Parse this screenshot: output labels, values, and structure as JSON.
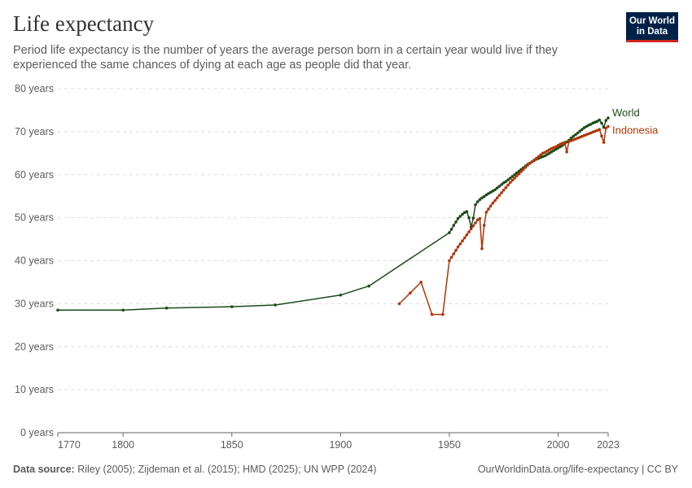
{
  "header": {
    "title": "Life expectancy",
    "subtitle": "Period life expectancy is the number of years the average person born in a certain year would live if they experienced the same chances of dying at each age as people did that year.",
    "logo_line1": "Our World",
    "logo_line2": "in Data"
  },
  "footer": {
    "source_label": "Data source:",
    "source_text": " Riley (2005); Zijdeman et al. (2015); HMD (2025); UN WPP (2024)",
    "url": "OurWorldinData.org/life-expectancy | CC BY"
  },
  "colors": {
    "world": "#1e4a1a",
    "indonesia": "#b13507",
    "grid": "#dddddd",
    "axis": "#666666"
  },
  "chart_data": {
    "type": "line",
    "title": "Life expectancy",
    "xlim": [
      1770,
      2023
    ],
    "ylim": [
      0,
      80
    ],
    "x_ticks": [
      1770,
      1800,
      1850,
      1900,
      1950,
      2000,
      2023
    ],
    "x_tick_labels": [
      "1770",
      "1800",
      "1850",
      "1900",
      "1950",
      "2000",
      "2023"
    ],
    "y_ticks": [
      0,
      10,
      20,
      30,
      40,
      50,
      60,
      70,
      80
    ],
    "y_tick_labels": [
      "0 years",
      "10 years",
      "20 years",
      "30 years",
      "40 years",
      "50 years",
      "60 years",
      "70 years",
      "80 years"
    ],
    "grid": "horizontal dashed",
    "legend": "inline labels at right end of lines",
    "series": [
      {
        "name": "World",
        "color": "#1e4a1a",
        "points": [
          [
            1770,
            28.5
          ],
          [
            1800,
            28.5
          ],
          [
            1820,
            29.0
          ],
          [
            1850,
            29.3
          ],
          [
            1870,
            29.7
          ],
          [
            1900,
            32.0
          ],
          [
            1913,
            34.1
          ],
          [
            1950,
            46.5
          ],
          [
            1951,
            47.3
          ],
          [
            1952,
            48.2
          ],
          [
            1953,
            49.0
          ],
          [
            1954,
            49.8
          ],
          [
            1955,
            50.3
          ],
          [
            1956,
            50.8
          ],
          [
            1957,
            51.2
          ],
          [
            1958,
            51.4
          ],
          [
            1959,
            50.0
          ],
          [
            1960,
            47.8
          ],
          [
            1961,
            49.9
          ],
          [
            1962,
            53.0
          ],
          [
            1963,
            53.7
          ],
          [
            1964,
            54.2
          ],
          [
            1965,
            54.6
          ],
          [
            1966,
            54.9
          ],
          [
            1967,
            55.3
          ],
          [
            1968,
            55.6
          ],
          [
            1969,
            55.9
          ],
          [
            1970,
            56.2
          ],
          [
            1971,
            56.5
          ],
          [
            1972,
            56.9
          ],
          [
            1973,
            57.3
          ],
          [
            1974,
            57.7
          ],
          [
            1975,
            58.1
          ],
          [
            1976,
            58.4
          ],
          [
            1977,
            58.8
          ],
          [
            1978,
            59.2
          ],
          [
            1979,
            59.6
          ],
          [
            1980,
            60.0
          ],
          [
            1981,
            60.4
          ],
          [
            1982,
            60.8
          ],
          [
            1983,
            61.2
          ],
          [
            1984,
            61.6
          ],
          [
            1985,
            62.0
          ],
          [
            1986,
            62.4
          ],
          [
            1987,
            62.7
          ],
          [
            1988,
            63.0
          ],
          [
            1989,
            63.3
          ],
          [
            1990,
            63.6
          ],
          [
            1991,
            63.8
          ],
          [
            1992,
            64.0
          ],
          [
            1993,
            64.2
          ],
          [
            1994,
            64.4
          ],
          [
            1995,
            64.7
          ],
          [
            1996,
            65.0
          ],
          [
            1997,
            65.3
          ],
          [
            1998,
            65.6
          ],
          [
            1999,
            65.9
          ],
          [
            2000,
            66.2
          ],
          [
            2001,
            66.5
          ],
          [
            2002,
            66.8
          ],
          [
            2003,
            67.2
          ],
          [
            2004,
            67.6
          ],
          [
            2005,
            68.0
          ],
          [
            2006,
            68.5
          ],
          [
            2007,
            68.9
          ],
          [
            2008,
            69.3
          ],
          [
            2009,
            69.7
          ],
          [
            2010,
            70.1
          ],
          [
            2011,
            70.5
          ],
          [
            2012,
            70.9
          ],
          [
            2013,
            71.2
          ],
          [
            2014,
            71.5
          ],
          [
            2015,
            71.7
          ],
          [
            2016,
            72.0
          ],
          [
            2017,
            72.2
          ],
          [
            2018,
            72.4
          ],
          [
            2019,
            72.7
          ],
          [
            2020,
            72.0
          ],
          [
            2021,
            71.0
          ],
          [
            2022,
            72.6
          ],
          [
            2023,
            73.2
          ]
        ]
      },
      {
        "name": "Indonesia",
        "color": "#b13507",
        "points": [
          [
            1927,
            30.0
          ],
          [
            1932,
            32.5
          ],
          [
            1937,
            35.0
          ],
          [
            1942,
            27.5
          ],
          [
            1947,
            27.5
          ],
          [
            1950,
            40.0
          ],
          [
            1951,
            40.8
          ],
          [
            1952,
            41.6
          ],
          [
            1953,
            42.4
          ],
          [
            1954,
            43.2
          ],
          [
            1955,
            43.9
          ],
          [
            1956,
            44.6
          ],
          [
            1957,
            45.3
          ],
          [
            1958,
            46.0
          ],
          [
            1959,
            46.7
          ],
          [
            1960,
            47.4
          ],
          [
            1961,
            48.1
          ],
          [
            1962,
            48.8
          ],
          [
            1963,
            49.5
          ],
          [
            1964,
            49.8
          ],
          [
            1965,
            42.8
          ],
          [
            1966,
            48.2
          ],
          [
            1967,
            51.3
          ],
          [
            1968,
            52.0
          ],
          [
            1969,
            52.7
          ],
          [
            1970,
            53.4
          ],
          [
            1971,
            54.0
          ],
          [
            1972,
            54.6
          ],
          [
            1973,
            55.2
          ],
          [
            1974,
            55.8
          ],
          [
            1975,
            56.4
          ],
          [
            1976,
            57.0
          ],
          [
            1977,
            57.6
          ],
          [
            1978,
            58.2
          ],
          [
            1979,
            58.7
          ],
          [
            1980,
            59.2
          ],
          [
            1981,
            59.7
          ],
          [
            1982,
            60.2
          ],
          [
            1983,
            60.7
          ],
          [
            1984,
            61.2
          ],
          [
            1985,
            61.7
          ],
          [
            1986,
            62.2
          ],
          [
            1987,
            62.6
          ],
          [
            1988,
            63.0
          ],
          [
            1989,
            63.4
          ],
          [
            1990,
            63.8
          ],
          [
            1991,
            64.2
          ],
          [
            1992,
            64.6
          ],
          [
            1993,
            65.0
          ],
          [
            1994,
            65.2
          ],
          [
            1995,
            65.5
          ],
          [
            1996,
            65.8
          ],
          [
            1997,
            66.1
          ],
          [
            1998,
            66.3
          ],
          [
            1999,
            66.5
          ],
          [
            2000,
            66.8
          ],
          [
            2001,
            67.1
          ],
          [
            2002,
            67.3
          ],
          [
            2003,
            67.5
          ],
          [
            2004,
            65.3
          ],
          [
            2005,
            67.7
          ],
          [
            2006,
            67.9
          ],
          [
            2007,
            68.1
          ],
          [
            2008,
            68.3
          ],
          [
            2009,
            68.5
          ],
          [
            2010,
            68.7
          ],
          [
            2011,
            68.9
          ],
          [
            2012,
            69.1
          ],
          [
            2013,
            69.3
          ],
          [
            2014,
            69.5
          ],
          [
            2015,
            69.7
          ],
          [
            2016,
            69.9
          ],
          [
            2017,
            70.1
          ],
          [
            2018,
            70.3
          ],
          [
            2019,
            70.5
          ],
          [
            2020,
            69.0
          ],
          [
            2021,
            67.5
          ],
          [
            2022,
            70.8
          ],
          [
            2023,
            71.2
          ]
        ]
      }
    ]
  }
}
